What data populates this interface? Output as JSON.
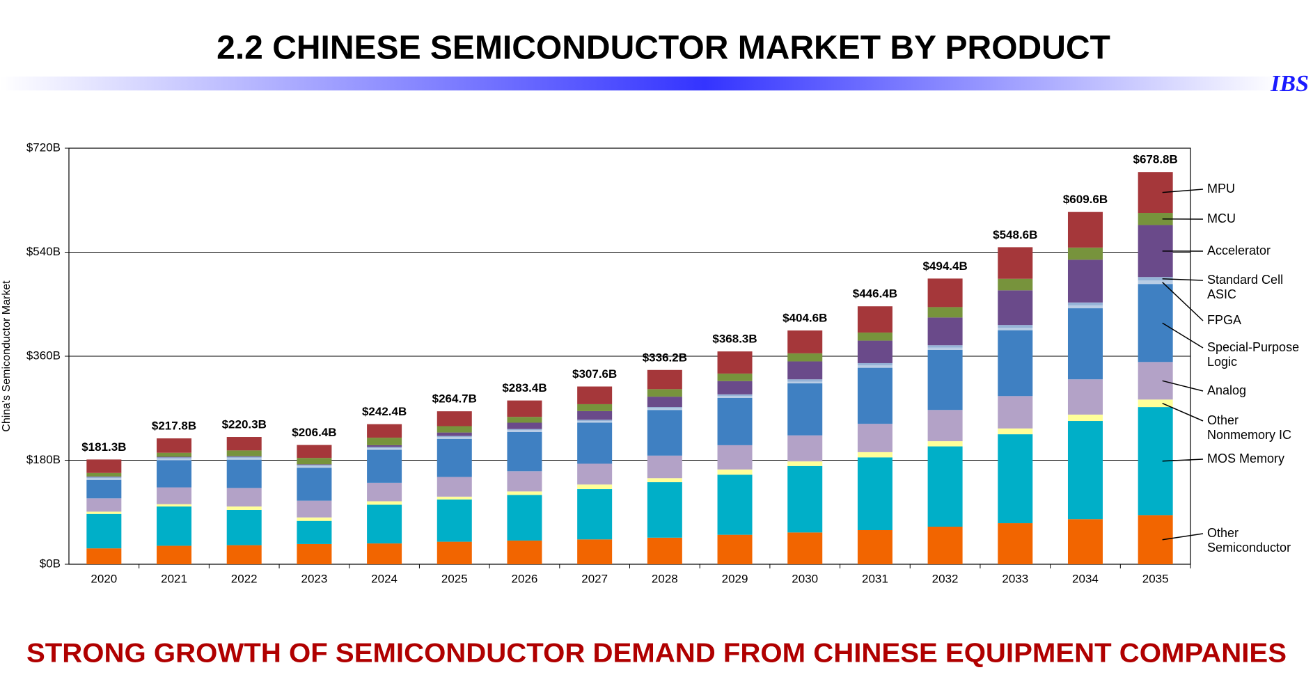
{
  "header": {
    "title": "2.2  CHINESE SEMICONDUCTOR MARKET BY PRODUCT",
    "logo": "IBS"
  },
  "chart_data": {
    "type": "stacked_bar",
    "y_label": "China's Semiconductor Market",
    "categories": [
      "2020",
      "2021",
      "2022",
      "2023",
      "2024",
      "2025",
      "2026",
      "2027",
      "2028",
      "2029",
      "2030",
      "2031",
      "2032",
      "2033",
      "2034",
      "2035"
    ],
    "ylim": [
      0,
      720
    ],
    "yticks": [
      {
        "value": 0,
        "label": "$0B"
      },
      {
        "value": 180,
        "label": "$180B"
      },
      {
        "value": 360,
        "label": "$360B"
      },
      {
        "value": 540,
        "label": "$540B"
      },
      {
        "value": 720,
        "label": "$720B"
      }
    ],
    "grid": true,
    "legend": "right",
    "series": [
      {
        "name": "Other\nSemiconductor",
        "color": "#f26500",
        "values": [
          27.5,
          32,
          33,
          35,
          36,
          39,
          41,
          43,
          46,
          51,
          55,
          59,
          65,
          71,
          78,
          85
        ]
      },
      {
        "name": "MOS Memory",
        "color": "#00afc8",
        "values": [
          59.5,
          68,
          61,
          40,
          67,
          73,
          79,
          87,
          96,
          104,
          115,
          126,
          139,
          154,
          170,
          187
        ]
      },
      {
        "name": "Other\nNonmemory IC",
        "color": "#ffff99",
        "values": [
          4,
          4,
          6,
          6,
          6,
          5,
          6,
          8,
          7,
          9,
          8,
          9,
          9,
          10,
          11,
          13
        ]
      },
      {
        "name": "Analog",
        "color": "#b3a2c7",
        "values": [
          23,
          29,
          32,
          29,
          32,
          34,
          35,
          36,
          39,
          42,
          45,
          49,
          54,
          56,
          61,
          65
        ]
      },
      {
        "name": "Special-Purpose\nLogic",
        "color": "#3f80c2",
        "values": [
          32,
          47,
          49,
          57,
          57,
          66,
          68,
          71,
          79,
          82,
          90,
          97,
          104,
          114,
          123,
          135
        ]
      },
      {
        "name": "FPGA",
        "color": "#b9cde5",
        "values": [
          3,
          3,
          3,
          3,
          3,
          3,
          3,
          3,
          3,
          3,
          3,
          4,
          4,
          4,
          5,
          6
        ]
      },
      {
        "name": "Standard Cell\nASIC",
        "color": "#95b3d7",
        "values": [
          2,
          2,
          2,
          2,
          2,
          2,
          2,
          2,
          2,
          3,
          4,
          4,
          4,
          5,
          5,
          6
        ]
      },
      {
        "name": "Accelerator",
        "color": "#6a4a8a",
        "values": [
          1,
          1,
          1,
          1,
          3,
          6,
          11,
          15,
          18,
          23,
          31,
          39,
          48,
          60,
          74,
          90
        ]
      },
      {
        "name": "MCU",
        "color": "#77933c",
        "values": [
          6,
          7,
          10,
          11,
          13,
          11,
          10,
          12,
          13,
          13,
          14,
          14,
          18,
          20,
          21,
          21
        ]
      },
      {
        "name": "MPU",
        "color": "#a5373a",
        "values": [
          23.3,
          24.8,
          23.3,
          22.4,
          23.4,
          25.7,
          28.4,
          30.6,
          33.2,
          38.3,
          39.6,
          45.4,
          49.4,
          54.6,
          61.6,
          70.8
        ]
      }
    ],
    "totals": {
      "values": [
        181.3,
        217.8,
        220.3,
        206.4,
        242.4,
        264.7,
        283.4,
        307.6,
        336.2,
        368.3,
        404.6,
        446.4,
        494.4,
        548.6,
        609.6,
        678.8
      ],
      "value_labels": [
        "$181.3B",
        "$217.8B",
        "$220.3B",
        "$206.4B",
        "$242.4B",
        "$264.7B",
        "$283.4B",
        "$307.6B",
        "$336.2B",
        "$368.3B",
        "$404.6B",
        "$446.4B",
        "$494.4B",
        "$548.6B",
        "$609.6B",
        "$678.8B"
      ]
    }
  },
  "footer": {
    "text": "STRONG GROWTH OF SEMICONDUCTOR DEMAND FROM CHINESE EQUIPMENT COMPANIES"
  }
}
